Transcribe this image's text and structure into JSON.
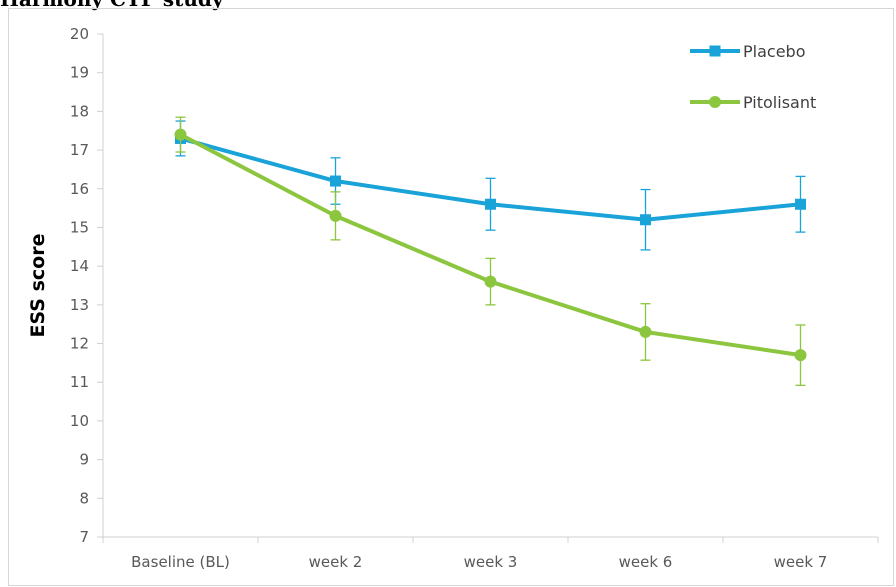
{
  "heading": "Harmony CTP study",
  "chart_data": {
    "type": "line",
    "title": "",
    "xlabel": "",
    "ylabel": "ESS score",
    "ylim": [
      7,
      20
    ],
    "yticks": [
      "7",
      "8",
      "9",
      "10",
      "11",
      "12",
      "13",
      "14",
      "15",
      "16",
      "17",
      "18",
      "19",
      "20"
    ],
    "categories": [
      "Baseline (BL)",
      "week 2",
      "week 3",
      "week 6",
      "week 7"
    ],
    "grid": false,
    "legend_position": "top-right",
    "series": [
      {
        "name": "Placebo",
        "color": "#1aa3d9",
        "marker": "square",
        "values": [
          17.3,
          16.2,
          15.6,
          15.2,
          15.6
        ],
        "error": [
          0.45,
          0.6,
          0.67,
          0.78,
          0.72
        ]
      },
      {
        "name": "Pitolisant",
        "color": "#8cc63f",
        "marker": "circle",
        "values": [
          17.4,
          15.3,
          13.6,
          12.3,
          11.7
        ],
        "error": [
          0.45,
          0.62,
          0.6,
          0.73,
          0.78
        ]
      }
    ]
  }
}
